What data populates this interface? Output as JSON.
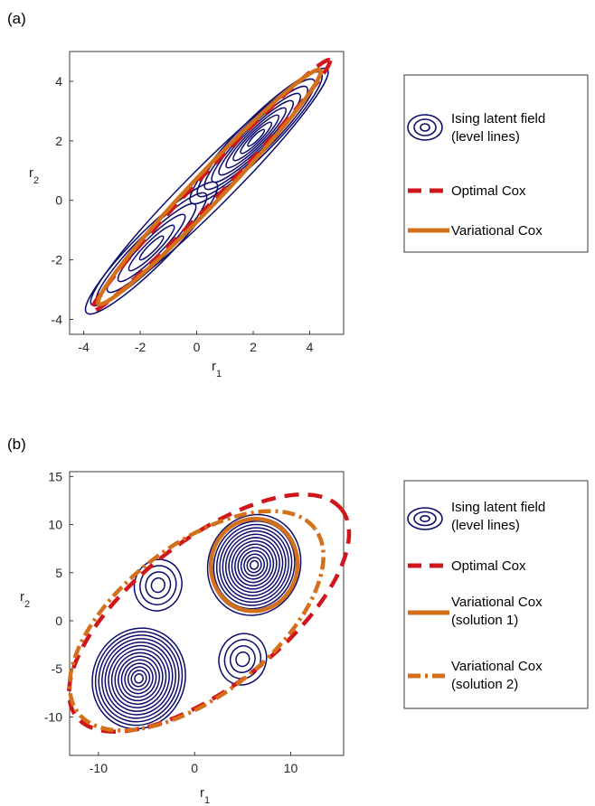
{
  "colors": {
    "contour": "#0b0c6b",
    "optimal": "#d0161b",
    "variational": "#d4701a",
    "axis": "#262626"
  },
  "chart_data": [
    {
      "type": "contour",
      "panel_label": "(a)",
      "xlabel": "r",
      "xlabel_sub": "1",
      "ylabel": "r",
      "ylabel_sub": "2",
      "xlim": [
        -4.5,
        5.2
      ],
      "ylim": [
        -4.5,
        5.0
      ],
      "xticks": [
        -4,
        -2,
        0,
        2,
        4
      ],
      "yticks": [
        -4,
        -2,
        0,
        2,
        4
      ],
      "modes": [
        {
          "center": [
            -1.6,
            -1.6
          ],
          "weight": 0.65
        },
        {
          "center": [
            2.1,
            2.1
          ],
          "weight": 1.0
        }
      ],
      "series": [
        {
          "name": "Ising latent field\n(level lines)",
          "kind": "contour"
        },
        {
          "name": "Optimal Cox",
          "kind": "ellipse",
          "center": [
            0.5,
            0.5
          ],
          "major_half": 5.95,
          "minor_half": 0.42,
          "angle_deg": 45
        },
        {
          "name": "Variational Cox",
          "kind": "ellipse",
          "center": [
            0.45,
            0.45
          ],
          "major_half": 5.55,
          "minor_half": 0.52,
          "angle_deg": 45
        }
      ],
      "legend": [
        "Ising latent field",
        "(level lines)",
        "Optimal Cox",
        "Variational Cox"
      ]
    },
    {
      "type": "contour",
      "panel_label": "(b)",
      "xlabel": "r",
      "xlabel_sub": "1",
      "ylabel": "r",
      "ylabel_sub": "2",
      "xlim": [
        -13,
        15.5
      ],
      "ylim": [
        -14,
        15.5
      ],
      "xticks": [
        -10,
        0,
        10
      ],
      "yticks": [
        -10,
        -5,
        0,
        5,
        10,
        15
      ],
      "modes": [
        {
          "center": [
            6.2,
            5.8
          ],
          "weight": 1.0
        },
        {
          "center": [
            -5.8,
            -6.0
          ],
          "weight": 0.9
        },
        {
          "center": [
            -3.8,
            3.7
          ],
          "weight": 0.25
        },
        {
          "center": [
            5.0,
            -4.0
          ],
          "weight": 0.25
        }
      ],
      "series": [
        {
          "name": "Ising latent field\n(level lines)",
          "kind": "contour"
        },
        {
          "name": "Optimal Cox",
          "kind": "ellipse",
          "center": [
            1.5,
            0.8
          ],
          "major_half": 17.5,
          "minor_half": 7.6,
          "angle_deg": 38
        },
        {
          "name": "Variational Cox\n(solution 1)",
          "kind": "ellipse",
          "center": [
            6.2,
            5.8
          ],
          "major_half": 4.8,
          "minor_half": 4.5,
          "angle_deg": 80
        },
        {
          "name": "Variational Cox\n(solution 2)",
          "kind": "ellipse",
          "center": [
            0.2,
            0.0
          ],
          "major_half": 15.6,
          "minor_half": 7.8,
          "angle_deg": 38
        }
      ],
      "legend": [
        "Ising latent field",
        "(level lines)",
        "Optimal Cox",
        "Variational Cox",
        "(solution 1)",
        "Variational Cox",
        "(solution 2)"
      ]
    }
  ]
}
